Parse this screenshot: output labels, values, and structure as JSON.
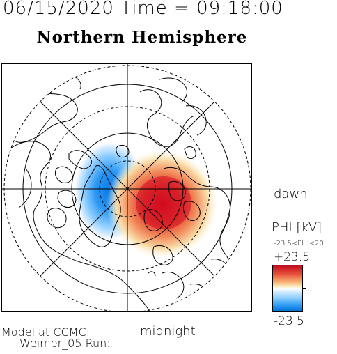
{
  "header": {
    "datetime": "06/15/2020 Time = 09:18:00",
    "title": "Northern Hemisphere"
  },
  "map": {
    "projection": "polar",
    "hemisphere": "north",
    "dawn_label": "dawn",
    "midnight_label": "midnight",
    "colors": {
      "positive": "#d0101e",
      "negative": "#1a86ee",
      "zero": "#ffffff",
      "coastline": "#000000"
    }
  },
  "colorbar": {
    "title": "PHI [kV]",
    "range_text": "-23.5<PHI<20",
    "max_label": "+23.5",
    "zero_label": "0",
    "min_label": "-23.5"
  },
  "footer": {
    "model_line1": "Model at CCMC:",
    "model_line2": "Weimer_05 Run:"
  }
}
